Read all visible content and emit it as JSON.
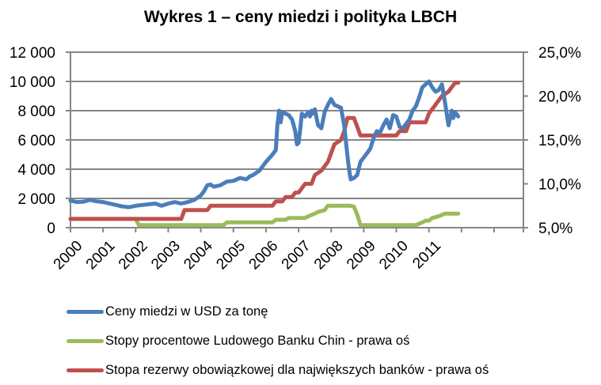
{
  "title": "Wykres 1 – ceny miedzi i polityka LBCH",
  "colors": {
    "copper": "#4a7ebb",
    "pboc_rate": "#9bbb59",
    "reserve_ratio": "#c0504d",
    "grid": "#868686"
  },
  "legend": {
    "items": [
      {
        "label": "Ceny miedzi w USD za tonę",
        "color": "#4a7ebb"
      },
      {
        "label": "Stopy procentowe Ludowego Banku Chin - prawa oś",
        "color": "#9bbb59"
      },
      {
        "label": "Stopa rezerwy obowiązkowej dla największych banków - prawa oś",
        "color": "#c0504d"
      }
    ]
  },
  "chart_data": {
    "type": "line",
    "title": "Wykres 1 – ceny miedzi i polityka LBCH",
    "xlabel": "",
    "ylabel": "",
    "y2label": "",
    "categories": [
      "2000",
      "2001",
      "2002",
      "2003",
      "2004",
      "2005",
      "2006",
      "2007",
      "2008",
      "2009",
      "2010",
      "2011"
    ],
    "y_ticks": [
      "0",
      "2 000",
      "4 000",
      "6 000",
      "8 000",
      "10 000",
      "12 000"
    ],
    "y2_ticks": [
      "5,0%",
      "10,0%",
      "15,0%",
      "20,0%",
      "25,0%"
    ],
    "ylim": [
      0,
      12000
    ],
    "y2lim": [
      5,
      25
    ],
    "grid": true,
    "legend_position": "bottom",
    "series": [
      {
        "name": "Ceny miedzi w USD za tonę",
        "axis": "left",
        "x": [
          2000.0,
          2000.2,
          2000.4,
          2000.6,
          2000.8,
          2001.0,
          2001.2,
          2001.4,
          2001.6,
          2001.8,
          2002.0,
          2002.2,
          2002.4,
          2002.6,
          2002.8,
          2003.0,
          2003.2,
          2003.4,
          2003.6,
          2003.8,
          2004.0,
          2004.1,
          2004.2,
          2004.3,
          2004.4,
          2004.6,
          2004.8,
          2005.0,
          2005.2,
          2005.4,
          2005.5,
          2005.6,
          2005.8,
          2006.0,
          2006.2,
          2006.3,
          2006.35,
          2006.4,
          2006.45,
          2006.5,
          2006.6,
          2006.7,
          2006.8,
          2006.9,
          2006.95,
          2007.0,
          2007.05,
          2007.1,
          2007.2,
          2007.3,
          2007.35,
          2007.4,
          2007.45,
          2007.5,
          2007.6,
          2007.7,
          2007.8,
          2007.9,
          2008.0,
          2008.1,
          2008.2,
          2008.3,
          2008.4,
          2008.5,
          2008.55,
          2008.6,
          2008.7,
          2008.8,
          2008.9,
          2009.0,
          2009.1,
          2009.2,
          2009.3,
          2009.4,
          2009.5,
          2009.6,
          2009.7,
          2009.8,
          2009.9,
          2010.0,
          2010.1,
          2010.2,
          2010.3,
          2010.4,
          2010.5,
          2010.6,
          2010.7,
          2010.8,
          2010.9,
          2011.0,
          2011.1,
          2011.2,
          2011.3,
          2011.4,
          2011.5,
          2011.6,
          2011.7,
          2011.75,
          2011.8,
          2011.9
        ],
        "values": [
          1850,
          1750,
          1780,
          1900,
          1800,
          1750,
          1650,
          1550,
          1450,
          1400,
          1500,
          1550,
          1600,
          1650,
          1500,
          1650,
          1750,
          1650,
          1750,
          1900,
          2200,
          2500,
          2900,
          2950,
          2800,
          2900,
          3150,
          3200,
          3400,
          3300,
          3500,
          3600,
          3900,
          4500,
          5000,
          5300,
          7000,
          8000,
          7200,
          7900,
          7800,
          7700,
          7400,
          6600,
          5700,
          5800,
          6700,
          7800,
          7600,
          7900,
          7600,
          8000,
          7800,
          8100,
          7000,
          6800,
          7900,
          8400,
          8800,
          8400,
          8300,
          8200,
          7000,
          4900,
          4000,
          3300,
          3400,
          3600,
          4500,
          4800,
          5100,
          5400,
          6100,
          6600,
          6500,
          7000,
          7400,
          6800,
          7700,
          7600,
          6900,
          6800,
          7100,
          7400,
          8000,
          8300,
          8900,
          9600,
          9800,
          10000,
          9600,
          9300,
          9400,
          9800,
          8500,
          7000,
          8000,
          7500,
          7900,
          7600
        ]
      },
      {
        "name": "Stopy procentowe Ludowego Banku Chin - prawa oś",
        "axis": "right",
        "x": [
          2000.0,
          2002.0,
          2002.1,
          2004.7,
          2004.8,
          2006.2,
          2006.3,
          2006.6,
          2006.7,
          2007.2,
          2007.3,
          2007.5,
          2007.6,
          2007.8,
          2007.9,
          2008.6,
          2008.7,
          2008.8,
          2008.9,
          2010.6,
          2010.8,
          2010.9,
          2011.0,
          2011.1,
          2011.3,
          2011.5,
          2011.9
        ],
        "values": [
          6.0,
          6.0,
          5.3,
          5.3,
          5.6,
          5.6,
          5.9,
          5.9,
          6.1,
          6.1,
          6.3,
          6.6,
          6.8,
          7.0,
          7.5,
          7.5,
          7.4,
          6.5,
          5.3,
          5.3,
          5.6,
          5.8,
          5.8,
          6.1,
          6.3,
          6.6,
          6.6
        ]
      },
      {
        "name": "Stopa rezerwy obowiązkowej dla największych banków - prawa oś",
        "axis": "right",
        "x": [
          2000.0,
          2003.4,
          2003.5,
          2004.2,
          2004.3,
          2006.2,
          2006.3,
          2006.5,
          2006.6,
          2006.8,
          2006.9,
          2007.0,
          2007.2,
          2007.4,
          2007.5,
          2007.7,
          2007.8,
          2007.9,
          2008.0,
          2008.1,
          2008.3,
          2008.4,
          2008.5,
          2008.7,
          2008.8,
          2008.9,
          2009.0,
          2010.0,
          2010.1,
          2010.3,
          2010.4,
          2010.9,
          2011.0,
          2011.2,
          2011.4,
          2011.6,
          2011.8,
          2011.9
        ],
        "values": [
          6.0,
          6.0,
          7.0,
          7.0,
          7.5,
          7.5,
          8.0,
          8.0,
          8.5,
          8.5,
          9.0,
          9.0,
          10.0,
          10.0,
          11.0,
          11.5,
          12.0,
          12.5,
          13.5,
          14.5,
          15.0,
          16.0,
          17.5,
          17.5,
          16.5,
          15.5,
          15.5,
          15.5,
          16.0,
          16.0,
          17.0,
          17.0,
          18.0,
          19.0,
          20.0,
          20.5,
          21.5,
          21.5
        ]
      }
    ]
  }
}
